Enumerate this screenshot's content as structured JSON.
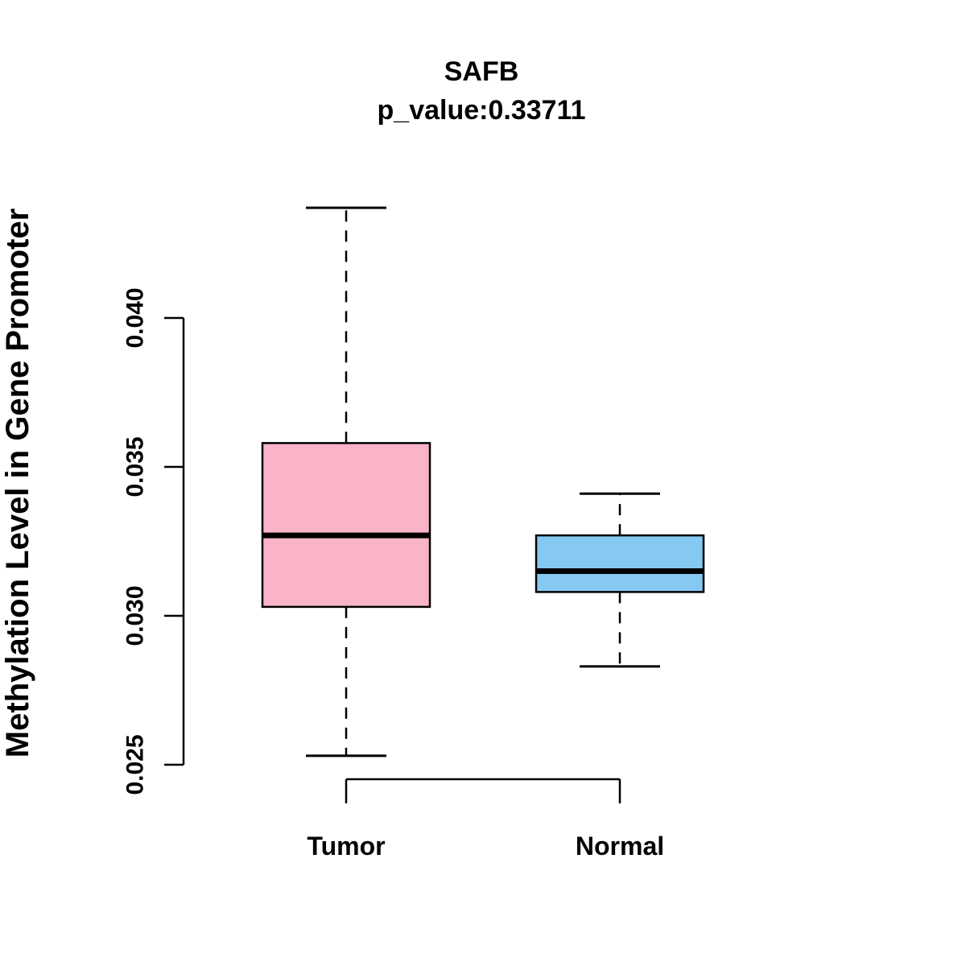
{
  "chart_data": {
    "type": "boxplot",
    "title": "SAFB",
    "subtitle": "p_value:0.33711",
    "ylabel": "Methylation Level in Gene Promoter",
    "xlabel": "",
    "categories": [
      "Tumor",
      "Normal"
    ],
    "series": [
      {
        "name": "Tumor",
        "whisker_low": 0.0253,
        "q1": 0.0303,
        "median": 0.0327,
        "q3": 0.0358,
        "whisker_high": 0.0437,
        "fill_color": "#FAB4C8"
      },
      {
        "name": "Normal",
        "whisker_low": 0.0283,
        "q1": 0.0308,
        "median": 0.0315,
        "q3": 0.0327,
        "whisker_high": 0.0341,
        "fill_color": "#85C8F2"
      }
    ],
    "yticks": [
      0.025,
      0.03,
      0.035,
      0.04
    ],
    "ytick_labels": [
      "0.025",
      "0.030",
      "0.035",
      "0.040"
    ],
    "ylim": [
      0.0245,
      0.0445
    ],
    "grid": false,
    "legend": "none",
    "stroke_color": "#000000",
    "background_color": "#FFFFFF"
  }
}
